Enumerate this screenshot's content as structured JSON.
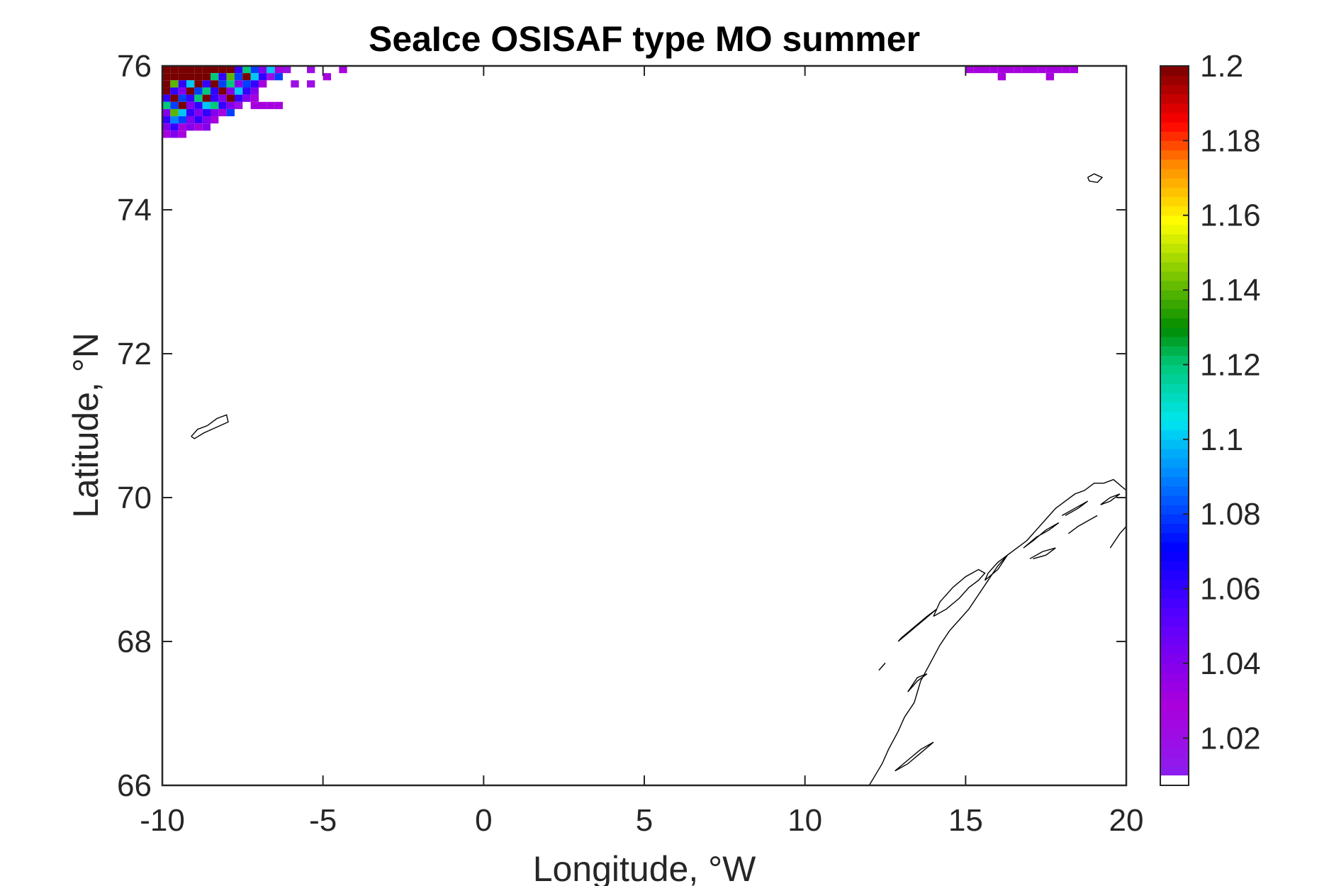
{
  "chart_data": {
    "type": "heatmap",
    "title": "SeaIce OSISAF type MO summer",
    "xlabel": "Longitude, °W",
    "ylabel": "Latitude, °N",
    "xlim": [
      -10,
      20
    ],
    "ylim": [
      66,
      76
    ],
    "xticks": [
      -10,
      -5,
      0,
      5,
      10,
      15,
      20
    ],
    "yticks": [
      66,
      68,
      70,
      72,
      74,
      76
    ],
    "grid": false,
    "colorbar": {
      "ticks": [
        1.02,
        1.04,
        1.06,
        1.08,
        1.1,
        1.12,
        1.14,
        1.16,
        1.18,
        1.2
      ],
      "tick_labels": [
        "1.02",
        "1.04",
        "1.06",
        "1.08",
        "1.1",
        "1.12",
        "1.14",
        "1.16",
        "1.18",
        "1.2"
      ],
      "min": 1.01,
      "max": 1.2,
      "colormap": "jet-like (white-purple-blue-cyan-green-yellow-red-dark red)",
      "below_min_color": "#ffffff"
    },
    "coastline_color": "#000000",
    "grid_cell": {
      "dlon": 0.25,
      "dlat": 0.1
    },
    "cells": [
      {
        "lon": -10.0,
        "lat": 75.9,
        "v": 1.2
      },
      {
        "lon": -9.75,
        "lat": 75.9,
        "v": 1.2
      },
      {
        "lon": -9.5,
        "lat": 75.9,
        "v": 1.2
      },
      {
        "lon": -9.25,
        "lat": 75.9,
        "v": 1.2
      },
      {
        "lon": -9.0,
        "lat": 75.9,
        "v": 1.2
      },
      {
        "lon": -8.75,
        "lat": 75.9,
        "v": 1.2
      },
      {
        "lon": -8.5,
        "lat": 75.9,
        "v": 1.2
      },
      {
        "lon": -8.25,
        "lat": 75.9,
        "v": 1.2
      },
      {
        "lon": -8.0,
        "lat": 75.9,
        "v": 1.2
      },
      {
        "lon": -7.75,
        "lat": 75.9,
        "v": 1.06
      },
      {
        "lon": -7.5,
        "lat": 75.9,
        "v": 1.12
      },
      {
        "lon": -7.25,
        "lat": 75.9,
        "v": 1.08
      },
      {
        "lon": -7.0,
        "lat": 75.9,
        "v": 1.04
      },
      {
        "lon": -6.75,
        "lat": 75.9,
        "v": 1.1
      },
      {
        "lon": -6.5,
        "lat": 75.9,
        "v": 1.03
      },
      {
        "lon": -6.25,
        "lat": 75.9,
        "v": 1.02
      },
      {
        "lon": -5.5,
        "lat": 75.9,
        "v": 1.02
      },
      {
        "lon": -4.5,
        "lat": 75.9,
        "v": 1.03
      },
      {
        "lon": -10.0,
        "lat": 75.8,
        "v": 1.2
      },
      {
        "lon": -9.75,
        "lat": 75.8,
        "v": 1.2
      },
      {
        "lon": -9.5,
        "lat": 75.8,
        "v": 1.2
      },
      {
        "lon": -9.25,
        "lat": 75.8,
        "v": 1.2
      },
      {
        "lon": -9.0,
        "lat": 75.8,
        "v": 1.2
      },
      {
        "lon": -8.75,
        "lat": 75.8,
        "v": 1.2
      },
      {
        "lon": -8.5,
        "lat": 75.8,
        "v": 1.12
      },
      {
        "lon": -8.25,
        "lat": 75.8,
        "v": 1.06
      },
      {
        "lon": -8.0,
        "lat": 75.8,
        "v": 1.14
      },
      {
        "lon": -7.75,
        "lat": 75.8,
        "v": 1.08
      },
      {
        "lon": -7.5,
        "lat": 75.8,
        "v": 1.2
      },
      {
        "lon": -7.25,
        "lat": 75.8,
        "v": 1.1
      },
      {
        "lon": -7.0,
        "lat": 75.8,
        "v": 1.06
      },
      {
        "lon": -6.75,
        "lat": 75.8,
        "v": 1.02
      },
      {
        "lon": -6.5,
        "lat": 75.8,
        "v": 1.08
      },
      {
        "lon": -5.0,
        "lat": 75.8,
        "v": 1.03
      },
      {
        "lon": -10.0,
        "lat": 75.7,
        "v": 1.2
      },
      {
        "lon": -9.75,
        "lat": 75.7,
        "v": 1.14
      },
      {
        "lon": -9.5,
        "lat": 75.7,
        "v": 1.06
      },
      {
        "lon": -9.25,
        "lat": 75.7,
        "v": 1.1
      },
      {
        "lon": -9.0,
        "lat": 75.7,
        "v": 1.2
      },
      {
        "lon": -8.75,
        "lat": 75.7,
        "v": 1.06
      },
      {
        "lon": -8.5,
        "lat": 75.7,
        "v": 1.2
      },
      {
        "lon": -8.25,
        "lat": 75.7,
        "v": 1.08
      },
      {
        "lon": -8.0,
        "lat": 75.7,
        "v": 1.12
      },
      {
        "lon": -7.75,
        "lat": 75.7,
        "v": 1.04
      },
      {
        "lon": -7.5,
        "lat": 75.7,
        "v": 1.08
      },
      {
        "lon": -7.25,
        "lat": 75.7,
        "v": 1.06
      },
      {
        "lon": -7.0,
        "lat": 75.7,
        "v": 1.03
      },
      {
        "lon": -6.0,
        "lat": 75.7,
        "v": 1.02
      },
      {
        "lon": -5.5,
        "lat": 75.7,
        "v": 1.02
      },
      {
        "lon": -10.0,
        "lat": 75.6,
        "v": 1.2
      },
      {
        "lon": -9.75,
        "lat": 75.6,
        "v": 1.06
      },
      {
        "lon": -9.5,
        "lat": 75.6,
        "v": 1.04
      },
      {
        "lon": -9.25,
        "lat": 75.6,
        "v": 1.2
      },
      {
        "lon": -9.0,
        "lat": 75.6,
        "v": 1.08
      },
      {
        "lon": -8.75,
        "lat": 75.6,
        "v": 1.12
      },
      {
        "lon": -8.5,
        "lat": 75.6,
        "v": 1.06
      },
      {
        "lon": -8.25,
        "lat": 75.6,
        "v": 1.2
      },
      {
        "lon": -8.0,
        "lat": 75.6,
        "v": 1.04
      },
      {
        "lon": -7.75,
        "lat": 75.6,
        "v": 1.1
      },
      {
        "lon": -7.5,
        "lat": 75.6,
        "v": 1.06
      },
      {
        "lon": -7.25,
        "lat": 75.6,
        "v": 1.04
      },
      {
        "lon": -10.0,
        "lat": 75.5,
        "v": 1.06
      },
      {
        "lon": -9.75,
        "lat": 75.5,
        "v": 1.2
      },
      {
        "lon": -9.5,
        "lat": 75.5,
        "v": 1.08
      },
      {
        "lon": -9.25,
        "lat": 75.5,
        "v": 1.06
      },
      {
        "lon": -9.0,
        "lat": 75.5,
        "v": 1.12
      },
      {
        "lon": -8.75,
        "lat": 75.5,
        "v": 1.2
      },
      {
        "lon": -8.5,
        "lat": 75.5,
        "v": 1.06
      },
      {
        "lon": -8.25,
        "lat": 75.5,
        "v": 1.04
      },
      {
        "lon": -8.0,
        "lat": 75.5,
        "v": 1.2
      },
      {
        "lon": -7.75,
        "lat": 75.5,
        "v": 1.06
      },
      {
        "lon": -7.5,
        "lat": 75.5,
        "v": 1.04
      },
      {
        "lon": -7.25,
        "lat": 75.5,
        "v": 1.03
      },
      {
        "lon": -10.0,
        "lat": 75.4,
        "v": 1.12
      },
      {
        "lon": -9.75,
        "lat": 75.4,
        "v": 1.08
      },
      {
        "lon": -9.5,
        "lat": 75.4,
        "v": 1.2
      },
      {
        "lon": -9.25,
        "lat": 75.4,
        "v": 1.04
      },
      {
        "lon": -9.0,
        "lat": 75.4,
        "v": 1.06
      },
      {
        "lon": -8.75,
        "lat": 75.4,
        "v": 1.1
      },
      {
        "lon": -8.5,
        "lat": 75.4,
        "v": 1.12
      },
      {
        "lon": -8.25,
        "lat": 75.4,
        "v": 1.06
      },
      {
        "lon": -8.0,
        "lat": 75.4,
        "v": 1.04
      },
      {
        "lon": -7.75,
        "lat": 75.4,
        "v": 1.02
      },
      {
        "lon": -7.25,
        "lat": 75.4,
        "v": 1.03
      },
      {
        "lon": -7.0,
        "lat": 75.4,
        "v": 1.03
      },
      {
        "lon": -6.75,
        "lat": 75.4,
        "v": 1.03
      },
      {
        "lon": -6.5,
        "lat": 75.4,
        "v": 1.03
      },
      {
        "lon": -10.0,
        "lat": 75.3,
        "v": 1.04
      },
      {
        "lon": -9.75,
        "lat": 75.3,
        "v": 1.14
      },
      {
        "lon": -9.5,
        "lat": 75.3,
        "v": 1.1
      },
      {
        "lon": -9.25,
        "lat": 75.3,
        "v": 1.06
      },
      {
        "lon": -9.0,
        "lat": 75.3,
        "v": 1.04
      },
      {
        "lon": -8.75,
        "lat": 75.3,
        "v": 1.06
      },
      {
        "lon": -8.5,
        "lat": 75.3,
        "v": 1.04
      },
      {
        "lon": -8.25,
        "lat": 75.3,
        "v": 1.03
      },
      {
        "lon": -8.0,
        "lat": 75.3,
        "v": 1.08
      },
      {
        "lon": -10.0,
        "lat": 75.2,
        "v": 1.06
      },
      {
        "lon": -9.75,
        "lat": 75.2,
        "v": 1.09
      },
      {
        "lon": -9.5,
        "lat": 75.2,
        "v": 1.08
      },
      {
        "lon": -9.25,
        "lat": 75.2,
        "v": 1.04
      },
      {
        "lon": -9.0,
        "lat": 75.2,
        "v": 1.06
      },
      {
        "lon": -8.75,
        "lat": 75.2,
        "v": 1.04
      },
      {
        "lon": -8.5,
        "lat": 75.2,
        "v": 1.03
      },
      {
        "lon": -10.0,
        "lat": 75.1,
        "v": 1.04
      },
      {
        "lon": -9.75,
        "lat": 75.1,
        "v": 1.06
      },
      {
        "lon": -9.5,
        "lat": 75.1,
        "v": 1.03
      },
      {
        "lon": -9.25,
        "lat": 75.1,
        "v": 1.04
      },
      {
        "lon": -9.0,
        "lat": 75.1,
        "v": 1.03
      },
      {
        "lon": -8.75,
        "lat": 75.1,
        "v": 1.04
      },
      {
        "lon": -10.0,
        "lat": 75.0,
        "v": 1.03
      },
      {
        "lon": -9.75,
        "lat": 75.0,
        "v": 1.04
      },
      {
        "lon": -9.5,
        "lat": 75.0,
        "v": 1.03
      },
      {
        "lon": 15.0,
        "lat": 75.9,
        "v": 1.03
      },
      {
        "lon": 15.25,
        "lat": 75.9,
        "v": 1.03
      },
      {
        "lon": 15.5,
        "lat": 75.9,
        "v": 1.03
      },
      {
        "lon": 15.75,
        "lat": 75.9,
        "v": 1.03
      },
      {
        "lon": 16.0,
        "lat": 75.9,
        "v": 1.03
      },
      {
        "lon": 16.25,
        "lat": 75.9,
        "v": 1.03
      },
      {
        "lon": 16.5,
        "lat": 75.9,
        "v": 1.03
      },
      {
        "lon": 16.75,
        "lat": 75.9,
        "v": 1.03
      },
      {
        "lon": 17.0,
        "lat": 75.9,
        "v": 1.03
      },
      {
        "lon": 17.25,
        "lat": 75.9,
        "v": 1.03
      },
      {
        "lon": 17.5,
        "lat": 75.9,
        "v": 1.03
      },
      {
        "lon": 17.75,
        "lat": 75.9,
        "v": 1.03
      },
      {
        "lon": 18.0,
        "lat": 75.9,
        "v": 1.03
      },
      {
        "lon": 18.25,
        "lat": 75.9,
        "v": 1.03
      },
      {
        "lon": 16.0,
        "lat": 75.8,
        "v": 1.03
      },
      {
        "lon": 17.5,
        "lat": 75.8,
        "v": 1.03
      }
    ],
    "coastlines": [
      [
        [
          -9.1,
          70.85
        ],
        [
          -8.9,
          70.95
        ],
        [
          -8.6,
          71.0
        ],
        [
          -8.3,
          71.1
        ],
        [
          -8.0,
          71.15
        ],
        [
          -7.95,
          71.05
        ],
        [
          -8.3,
          70.98
        ],
        [
          -8.7,
          70.9
        ],
        [
          -9.0,
          70.82
        ],
        [
          -9.1,
          70.85
        ]
      ],
      [
        [
          18.8,
          74.45
        ],
        [
          19.0,
          74.5
        ],
        [
          19.25,
          74.45
        ],
        [
          19.1,
          74.38
        ],
        [
          18.85,
          74.4
        ],
        [
          18.8,
          74.45
        ]
      ],
      [
        [
          12.0,
          66.0
        ],
        [
          12.2,
          66.15
        ],
        [
          12.4,
          66.3
        ],
        [
          12.6,
          66.5
        ],
        [
          12.9,
          66.75
        ],
        [
          13.1,
          66.95
        ],
        [
          13.4,
          67.15
        ],
        [
          13.6,
          67.45
        ],
        [
          13.9,
          67.7
        ],
        [
          14.2,
          67.95
        ],
        [
          14.5,
          68.15
        ],
        [
          14.8,
          68.3
        ],
        [
          15.1,
          68.45
        ],
        [
          15.4,
          68.65
        ],
        [
          15.7,
          68.85
        ],
        [
          16.0,
          69.05
        ],
        [
          16.3,
          69.2
        ],
        [
          16.6,
          69.3
        ],
        [
          16.9,
          69.4
        ],
        [
          17.2,
          69.55
        ],
        [
          17.5,
          69.7
        ],
        [
          17.8,
          69.85
        ],
        [
          18.1,
          69.95
        ],
        [
          18.4,
          70.05
        ],
        [
          18.7,
          70.1
        ],
        [
          19.0,
          70.2
        ],
        [
          19.3,
          70.2
        ],
        [
          19.6,
          70.25
        ],
        [
          20.0,
          70.1
        ]
      ],
      [
        [
          14.0,
          68.35
        ],
        [
          14.4,
          68.45
        ],
        [
          14.8,
          68.6
        ],
        [
          15.1,
          68.75
        ],
        [
          15.4,
          68.85
        ],
        [
          15.6,
          68.95
        ],
        [
          15.4,
          69.0
        ],
        [
          15.0,
          68.9
        ],
        [
          14.6,
          68.75
        ],
        [
          14.2,
          68.55
        ],
        [
          14.0,
          68.35
        ]
      ],
      [
        [
          12.9,
          68.0
        ],
        [
          13.3,
          68.15
        ],
        [
          13.7,
          68.3
        ],
        [
          14.1,
          68.45
        ],
        [
          13.8,
          68.35
        ],
        [
          13.4,
          68.2
        ],
        [
          13.0,
          68.05
        ],
        [
          12.9,
          68.0
        ]
      ],
      [
        [
          15.6,
          68.85
        ],
        [
          16.0,
          69.0
        ],
        [
          16.3,
          69.2
        ],
        [
          16.0,
          69.1
        ],
        [
          15.7,
          68.95
        ],
        [
          15.6,
          68.85
        ]
      ],
      [
        [
          16.8,
          69.3
        ],
        [
          17.2,
          69.45
        ],
        [
          17.6,
          69.55
        ],
        [
          17.9,
          69.65
        ],
        [
          17.5,
          69.55
        ],
        [
          17.1,
          69.4
        ],
        [
          16.8,
          69.3
        ]
      ],
      [
        [
          18.0,
          69.75
        ],
        [
          18.4,
          69.85
        ],
        [
          18.8,
          69.95
        ],
        [
          18.5,
          69.85
        ],
        [
          18.1,
          69.75
        ]
      ],
      [
        [
          19.2,
          69.9
        ],
        [
          19.5,
          70.0
        ],
        [
          19.8,
          70.05
        ],
        [
          19.5,
          69.95
        ],
        [
          19.2,
          69.9
        ]
      ],
      [
        [
          13.2,
          67.3
        ],
        [
          13.5,
          67.5
        ],
        [
          13.8,
          67.55
        ],
        [
          13.5,
          67.45
        ],
        [
          13.2,
          67.3
        ]
      ],
      [
        [
          12.3,
          67.6
        ],
        [
          12.5,
          67.7
        ],
        [
          12.4,
          67.65
        ]
      ],
      [
        [
          12.8,
          66.2
        ],
        [
          13.2,
          66.3
        ],
        [
          13.6,
          66.45
        ],
        [
          14.0,
          66.6
        ],
        [
          13.6,
          66.5
        ],
        [
          13.2,
          66.35
        ],
        [
          12.8,
          66.2
        ]
      ],
      [
        [
          17.0,
          69.15
        ],
        [
          17.4,
          69.25
        ],
        [
          17.8,
          69.3
        ],
        [
          17.5,
          69.2
        ],
        [
          17.1,
          69.15
        ]
      ],
      [
        [
          18.2,
          69.5
        ],
        [
          18.5,
          69.6
        ],
        [
          18.9,
          69.7
        ],
        [
          19.1,
          69.75
        ]
      ],
      [
        [
          19.5,
          69.3
        ],
        [
          19.8,
          69.5
        ],
        [
          20.0,
          69.6
        ]
      ]
    ]
  }
}
